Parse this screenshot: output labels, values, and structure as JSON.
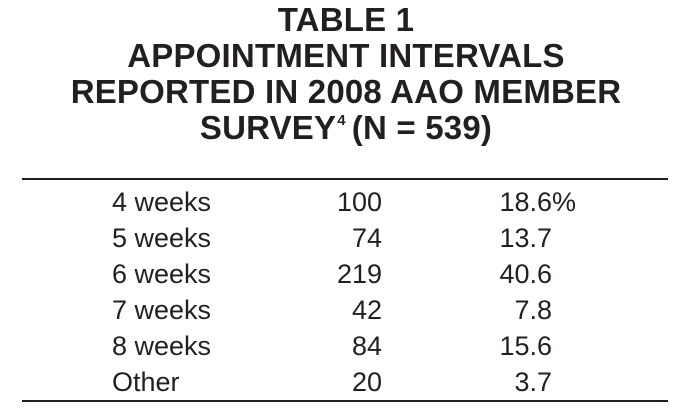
{
  "title": {
    "line1": "TABLE 1",
    "line2": "APPOINTMENT INTERVALS",
    "line3": "REPORTED IN 2008 AAO MEMBER",
    "line4_main": "SURVEY",
    "line4_ref": "4",
    "line4_tail": "(N = 539)"
  },
  "rows": [
    {
      "label": "4 weeks",
      "count": "100",
      "percent": "18.6",
      "suffix": "%"
    },
    {
      "label": "5 weeks",
      "count": "74",
      "percent": "13.7",
      "suffix": ""
    },
    {
      "label": "6 weeks",
      "count": "219",
      "percent": "40.6",
      "suffix": ""
    },
    {
      "label": "7 weeks",
      "count": "42",
      "percent": "7.8",
      "suffix": ""
    },
    {
      "label": "8 weeks",
      "count": "84",
      "percent": "15.6",
      "suffix": ""
    },
    {
      "label": "Other",
      "count": "20",
      "percent": "3.7",
      "suffix": ""
    }
  ]
}
